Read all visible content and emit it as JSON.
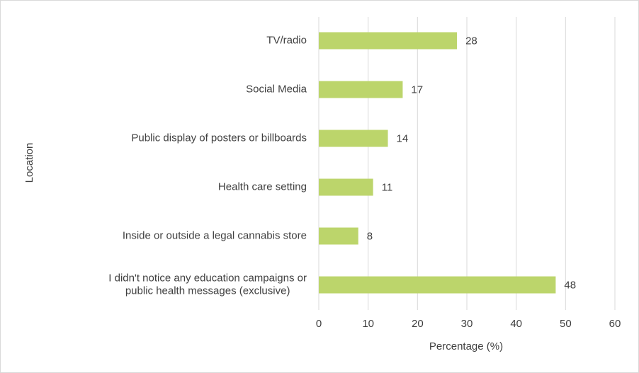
{
  "chart_data": {
    "type": "hbar",
    "x_axis_label": "Percentage (%)",
    "y_axis_label": "Location",
    "categories": [
      "TV/radio",
      "Social Media",
      "Public display of posters or billboards",
      "Health care setting",
      "Inside or outside a legal cannabis store",
      "I didn't notice any education campaigns or public health messages (exclusive)"
    ],
    "values": [
      28,
      17,
      14,
      11,
      8,
      48
    ],
    "color": "#bcd56b",
    "xlim": [
      0,
      60
    ],
    "xticks": [
      0,
      10,
      20,
      30,
      40,
      50,
      60
    ],
    "grid": true
  }
}
